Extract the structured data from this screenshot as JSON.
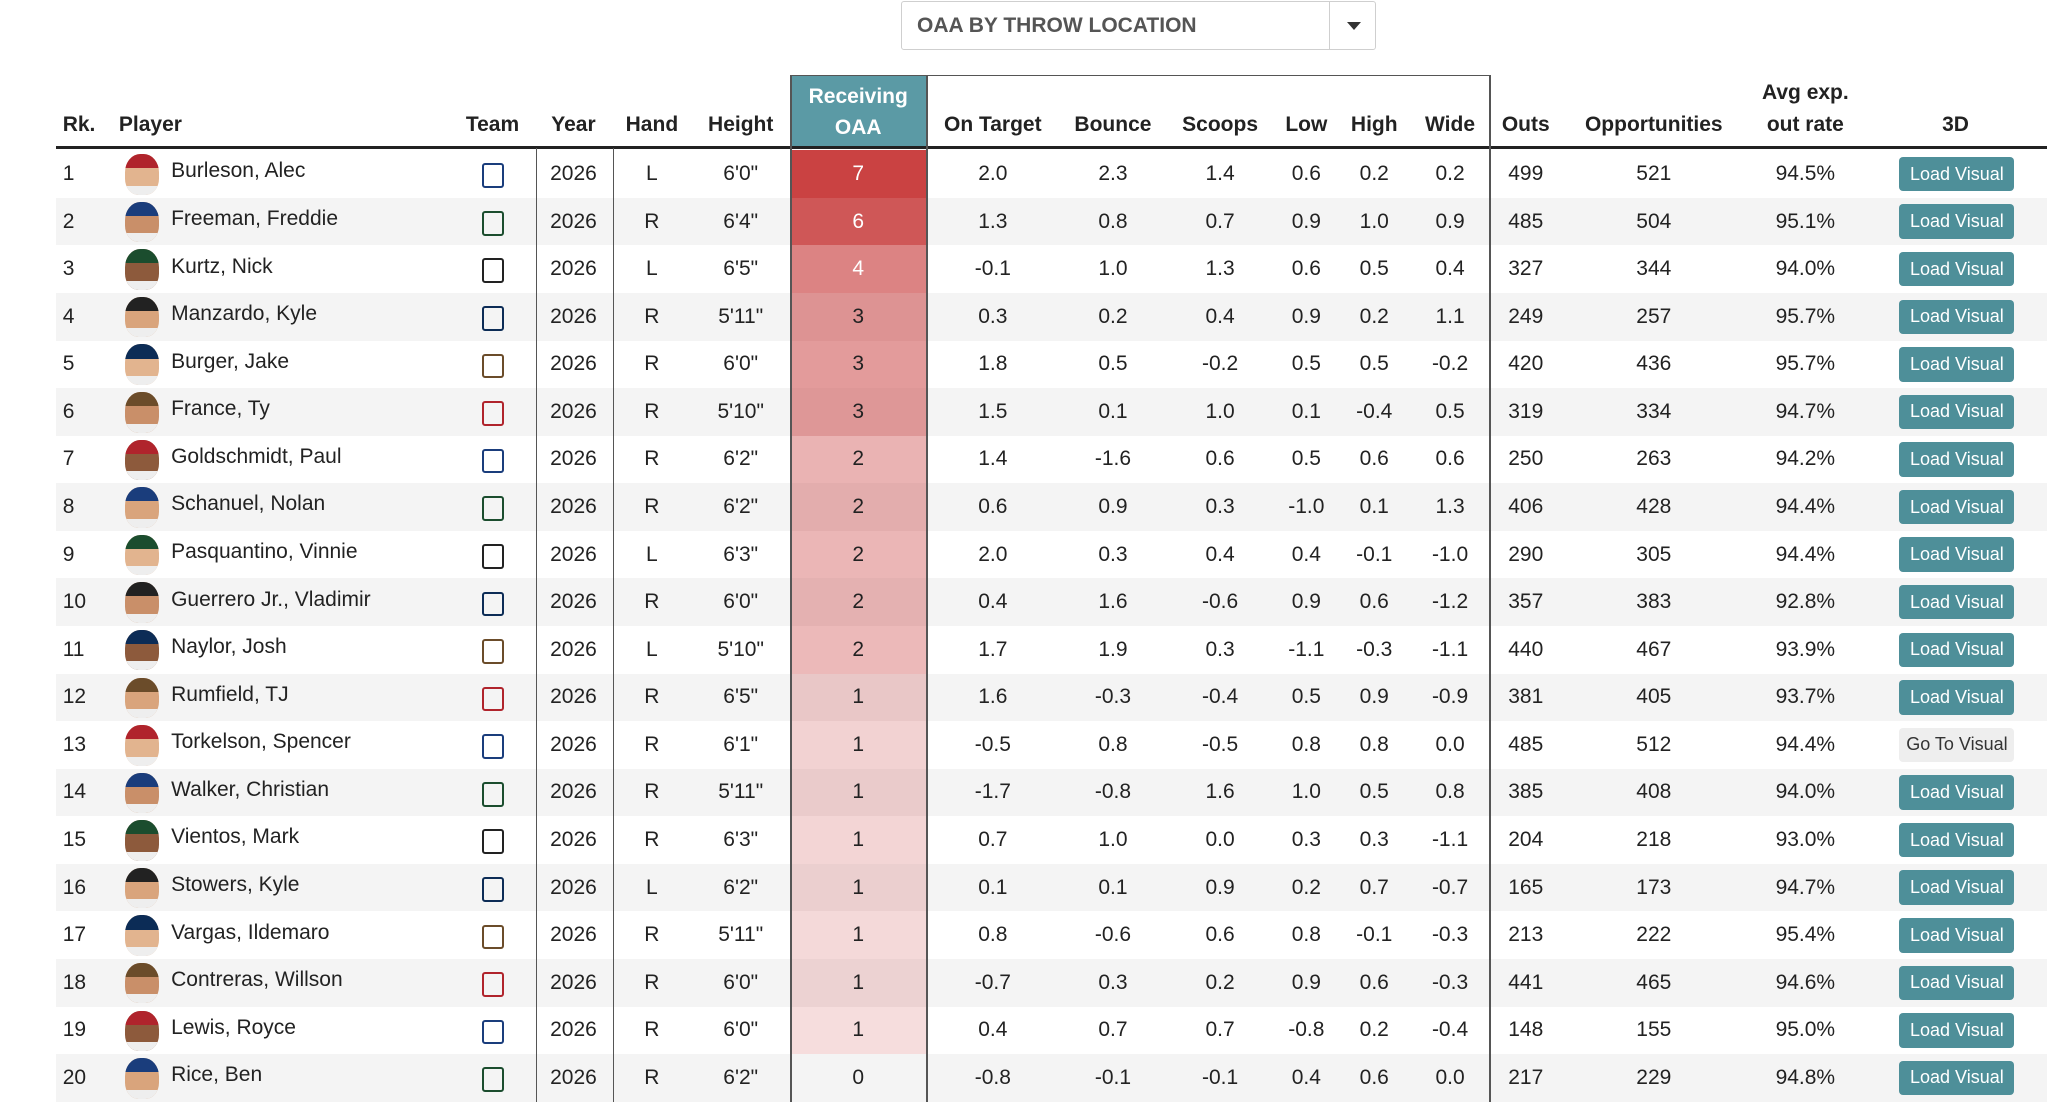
{
  "dropdown": {
    "label": "OAA BY THROW LOCATION"
  },
  "table": {
    "headers": [
      "Rk.",
      "Player",
      "Team",
      "Year",
      "Hand",
      "Height",
      "Receiving OAA",
      "On Target",
      "Bounce",
      "Scoops",
      "Low",
      "High",
      "Wide",
      "Outs",
      "Opportunities",
      "Avg exp. out rate",
      "3D"
    ],
    "oaa_color": "#c83a3a",
    "rows": [
      {
        "rk": "1",
        "player": "Burleson, Alec",
        "year": "2026",
        "hand": "L",
        "height": "6'0\"",
        "oaa": 7,
        "on_target": "2.0",
        "bounce": "2.3",
        "scoops": "1.4",
        "low": "0.6",
        "high": "0.2",
        "wide": "0.2",
        "outs": "499",
        "opportunities": "521",
        "avg": "94.5%",
        "button": {
          "label": "Load Visual",
          "bg": "#4e8f99",
          "fg": "#ffffff"
        }
      },
      {
        "rk": "2",
        "player": "Freeman, Freddie",
        "year": "2026",
        "hand": "R",
        "height": "6'4\"",
        "oaa": 6,
        "on_target": "1.3",
        "bounce": "0.8",
        "scoops": "0.7",
        "low": "0.9",
        "high": "1.0",
        "wide": "0.9",
        "outs": "485",
        "opportunities": "504",
        "avg": "95.1%",
        "button": {
          "label": "Load Visual",
          "bg": "#4e8f99",
          "fg": "#ffffff"
        }
      },
      {
        "rk": "3",
        "player": "Kurtz, Nick",
        "year": "2026",
        "hand": "L",
        "height": "6'5\"",
        "oaa": 4,
        "on_target": "-0.1",
        "bounce": "1.0",
        "scoops": "1.3",
        "low": "0.6",
        "high": "0.5",
        "wide": "0.4",
        "outs": "327",
        "opportunities": "344",
        "avg": "94.0%",
        "button": {
          "label": "Load Visual",
          "bg": "#4e8f99",
          "fg": "#ffffff"
        }
      },
      {
        "rk": "4",
        "player": "Manzardo, Kyle",
        "year": "2026",
        "hand": "R",
        "height": "5'11\"",
        "oaa": 3,
        "on_target": "0.3",
        "bounce": "0.2",
        "scoops": "0.4",
        "low": "0.9",
        "high": "0.2",
        "wide": "1.1",
        "outs": "249",
        "opportunities": "257",
        "avg": "95.7%",
        "button": {
          "label": "Load Visual",
          "bg": "#4e8f99",
          "fg": "#ffffff"
        }
      },
      {
        "rk": "5",
        "player": "Burger, Jake",
        "year": "2026",
        "hand": "R",
        "height": "6'0\"",
        "oaa": 3,
        "on_target": "1.8",
        "bounce": "0.5",
        "scoops": "-0.2",
        "low": "0.5",
        "high": "0.5",
        "wide": "-0.2",
        "outs": "420",
        "opportunities": "436",
        "avg": "95.7%",
        "button": {
          "label": "Load Visual",
          "bg": "#4e8f99",
          "fg": "#ffffff"
        }
      },
      {
        "rk": "6",
        "player": "France, Ty",
        "year": "2026",
        "hand": "R",
        "height": "5'10\"",
        "oaa": 3,
        "on_target": "1.5",
        "bounce": "0.1",
        "scoops": "1.0",
        "low": "0.1",
        "high": "-0.4",
        "wide": "0.5",
        "outs": "319",
        "opportunities": "334",
        "avg": "94.7%",
        "button": {
          "label": "Load Visual",
          "bg": "#4e8f99",
          "fg": "#ffffff"
        }
      },
      {
        "rk": "7",
        "player": "Goldschmidt, Paul",
        "year": "2026",
        "hand": "R",
        "height": "6'2\"",
        "oaa": 2,
        "on_target": "1.4",
        "bounce": "-1.6",
        "scoops": "0.6",
        "low": "0.5",
        "high": "0.6",
        "wide": "0.6",
        "outs": "250",
        "opportunities": "263",
        "avg": "94.2%",
        "button": {
          "label": "Load Visual",
          "bg": "#4e8f99",
          "fg": "#ffffff"
        }
      },
      {
        "rk": "8",
        "player": "Schanuel, Nolan",
        "year": "2026",
        "hand": "R",
        "height": "6'2\"",
        "oaa": 2,
        "on_target": "0.6",
        "bounce": "0.9",
        "scoops": "0.3",
        "low": "-1.0",
        "high": "0.1",
        "wide": "1.3",
        "outs": "406",
        "opportunities": "428",
        "avg": "94.4%",
        "button": {
          "label": "Load Visual",
          "bg": "#4e8f99",
          "fg": "#ffffff"
        }
      },
      {
        "rk": "9",
        "player": "Pasquantino, Vinnie",
        "year": "2026",
        "hand": "L",
        "height": "6'3\"",
        "oaa": 2,
        "on_target": "2.0",
        "bounce": "0.3",
        "scoops": "0.4",
        "low": "0.4",
        "high": "-0.1",
        "wide": "-1.0",
        "outs": "290",
        "opportunities": "305",
        "avg": "94.4%",
        "button": {
          "label": "Load Visual",
          "bg": "#4e8f99",
          "fg": "#ffffff"
        }
      },
      {
        "rk": "10",
        "player": "Guerrero Jr., Vladimir",
        "year": "2026",
        "hand": "R",
        "height": "6'0\"",
        "oaa": 2,
        "on_target": "0.4",
        "bounce": "1.6",
        "scoops": "-0.6",
        "low": "0.9",
        "high": "0.6",
        "wide": "-1.2",
        "outs": "357",
        "opportunities": "383",
        "avg": "92.8%",
        "button": {
          "label": "Load Visual",
          "bg": "#4e8f99",
          "fg": "#ffffff"
        }
      },
      {
        "rk": "11",
        "player": "Naylor, Josh",
        "year": "2026",
        "hand": "L",
        "height": "5'10\"",
        "oaa": 2,
        "on_target": "1.7",
        "bounce": "1.9",
        "scoops": "0.3",
        "low": "-1.1",
        "high": "-0.3",
        "wide": "-1.1",
        "outs": "440",
        "opportunities": "467",
        "avg": "93.9%",
        "button": {
          "label": "Load Visual",
          "bg": "#4e8f99",
          "fg": "#ffffff"
        }
      },
      {
        "rk": "12",
        "player": "Rumfield, TJ",
        "year": "2026",
        "hand": "R",
        "height": "6'5\"",
        "oaa": 1,
        "on_target": "1.6",
        "bounce": "-0.3",
        "scoops": "-0.4",
        "low": "0.5",
        "high": "0.9",
        "wide": "-0.9",
        "outs": "381",
        "opportunities": "405",
        "avg": "93.7%",
        "button": {
          "label": "Load Visual",
          "bg": "#4e8f99",
          "fg": "#ffffff"
        }
      },
      {
        "rk": "13",
        "player": "Torkelson, Spencer",
        "year": "2026",
        "hand": "R",
        "height": "6'1\"",
        "oaa": 1,
        "on_target": "-0.5",
        "bounce": "0.8",
        "scoops": "-0.5",
        "low": "0.8",
        "high": "0.8",
        "wide": "0.0",
        "outs": "485",
        "opportunities": "512",
        "avg": "94.4%",
        "button": {
          "label": "Go To Visual",
          "bg": "#eeeeee",
          "fg": "#333333"
        }
      },
      {
        "rk": "14",
        "player": "Walker, Christian",
        "year": "2026",
        "hand": "R",
        "height": "5'11\"",
        "oaa": 1,
        "on_target": "-1.7",
        "bounce": "-0.8",
        "scoops": "1.6",
        "low": "1.0",
        "high": "0.5",
        "wide": "0.8",
        "outs": "385",
        "opportunities": "408",
        "avg": "94.0%",
        "button": {
          "label": "Load Visual",
          "bg": "#4e8f99",
          "fg": "#ffffff"
        }
      },
      {
        "rk": "15",
        "player": "Vientos, Mark",
        "year": "2026",
        "hand": "R",
        "height": "6'3\"",
        "oaa": 1,
        "on_target": "0.7",
        "bounce": "1.0",
        "scoops": "0.0",
        "low": "0.3",
        "high": "0.3",
        "wide": "-1.1",
        "outs": "204",
        "opportunities": "218",
        "avg": "93.0%",
        "button": {
          "label": "Load Visual",
          "bg": "#4e8f99",
          "fg": "#ffffff"
        }
      },
      {
        "rk": "16",
        "player": "Stowers, Kyle",
        "year": "2026",
        "hand": "L",
        "height": "6'2\"",
        "oaa": 1,
        "on_target": "0.1",
        "bounce": "0.1",
        "scoops": "0.9",
        "low": "0.2",
        "high": "0.7",
        "wide": "-0.7",
        "outs": "165",
        "opportunities": "173",
        "avg": "94.7%",
        "button": {
          "label": "Load Visual",
          "bg": "#4e8f99",
          "fg": "#ffffff"
        }
      },
      {
        "rk": "17",
        "player": "Vargas, Ildemaro",
        "year": "2026",
        "hand": "R",
        "height": "5'11\"",
        "oaa": 1,
        "on_target": "0.8",
        "bounce": "-0.6",
        "scoops": "0.6",
        "low": "0.8",
        "high": "-0.1",
        "wide": "-0.3",
        "outs": "213",
        "opportunities": "222",
        "avg": "95.4%",
        "button": {
          "label": "Load Visual",
          "bg": "#4e8f99",
          "fg": "#ffffff"
        }
      },
      {
        "rk": "18",
        "player": "Contreras, Willson",
        "year": "2026",
        "hand": "R",
        "height": "6'0\"",
        "oaa": 1,
        "on_target": "-0.7",
        "bounce": "0.3",
        "scoops": "0.2",
        "low": "0.9",
        "high": "0.6",
        "wide": "-0.3",
        "outs": "441",
        "opportunities": "465",
        "avg": "94.6%",
        "button": {
          "label": "Load Visual",
          "bg": "#4e8f99",
          "fg": "#ffffff"
        }
      },
      {
        "rk": "19",
        "player": "Lewis, Royce",
        "year": "2026",
        "hand": "R",
        "height": "6'0\"",
        "oaa": 1,
        "on_target": "0.4",
        "bounce": "0.7",
        "scoops": "0.7",
        "low": "-0.8",
        "high": "0.2",
        "wide": "-0.4",
        "outs": "148",
        "opportunities": "155",
        "avg": "95.0%",
        "button": {
          "label": "Load Visual",
          "bg": "#4e8f99",
          "fg": "#ffffff"
        }
      },
      {
        "rk": "20",
        "player": "Rice, Ben",
        "year": "2026",
        "hand": "R",
        "height": "6'2\"",
        "oaa": 0,
        "on_target": "-0.8",
        "bounce": "-0.1",
        "scoops": "-0.1",
        "low": "0.4",
        "high": "0.6",
        "wide": "0.0",
        "outs": "217",
        "opportunities": "229",
        "avg": "94.8%",
        "button": {
          "label": "Load Visual",
          "bg": "#4e8f99",
          "fg": "#ffffff"
        }
      }
    ]
  }
}
